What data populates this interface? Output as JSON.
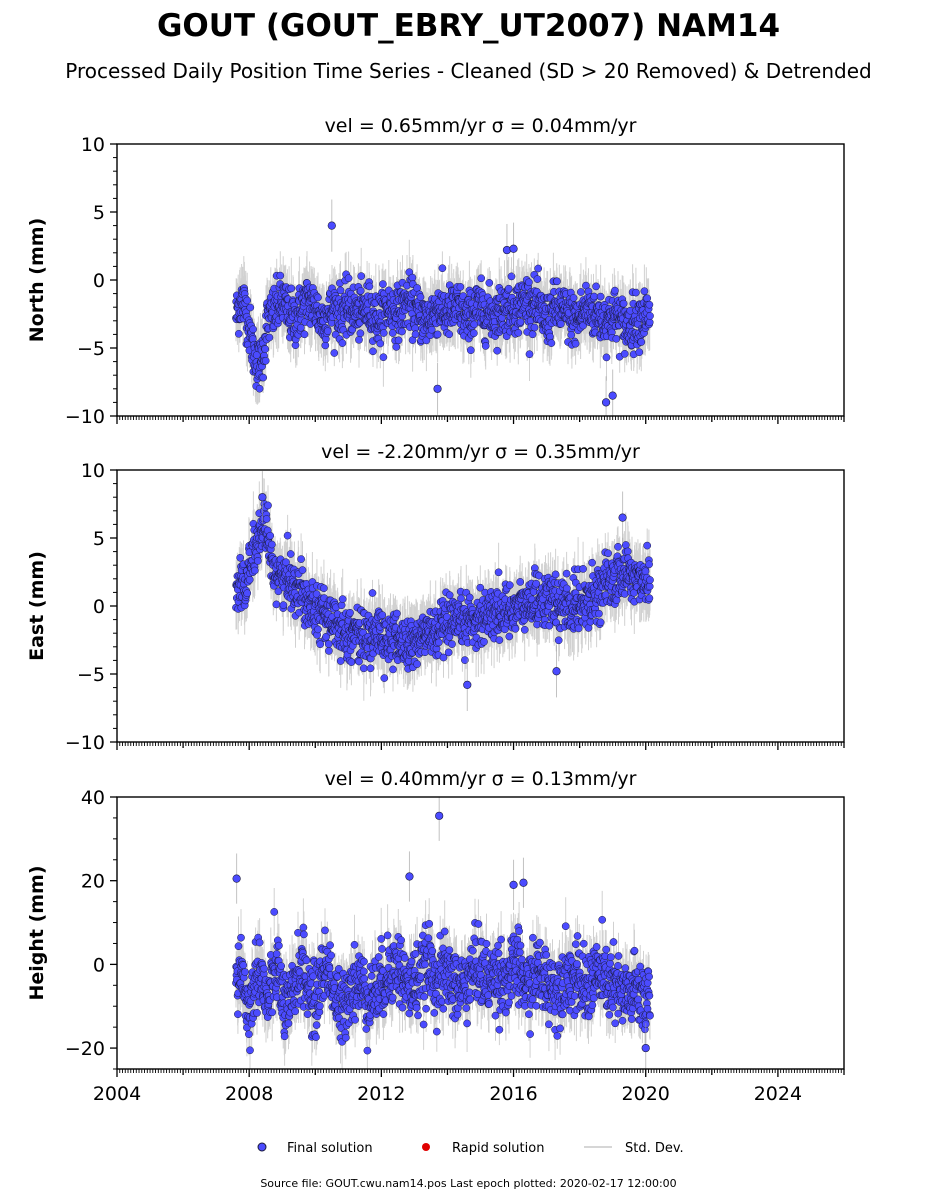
{
  "figure": {
    "title": "GOUT (GOUT_EBRY_UT2007) NAM14",
    "subtitle": "Processed Daily Position Time Series - Cleaned (SD > 20 Removed) & Detrended",
    "source_note": "Source file: GOUT.cwu.nam14.pos  Last epoch plotted: 2020-02-17 12:00:00"
  },
  "legend": {
    "items": [
      {
        "label": "Final solution",
        "color": "#4b4bff"
      },
      {
        "label": "Rapid solution",
        "color": "#e00000"
      },
      {
        "label": "Std. Dev.",
        "color": "#c8c8c8"
      }
    ]
  },
  "colors": {
    "final": "#4b4bff",
    "rapid": "#e00000",
    "stddev": "#9a9a9a",
    "marker_edge": "#1a1a3a"
  },
  "chart_data": [
    {
      "type": "scatter",
      "component": "North",
      "title": "vel = 0.65mm/yr   σ = 0.04mm/yr",
      "ylabel": "North (mm)",
      "xlim": [
        2004,
        2026
      ],
      "ylim": [
        -10,
        10
      ],
      "yticks": [
        -10,
        -5,
        0,
        5,
        10
      ],
      "ytick_labels": [
        "−10",
        "−5",
        "0",
        "5",
        "10"
      ],
      "xticks": [
        2004,
        2008,
        2012,
        2016,
        2020,
        2024
      ],
      "xtick_labels": [],
      "data_range": [
        2007.6,
        2020.13
      ],
      "series": [
        {
          "name": "Final solution",
          "x": [
            2007.62,
            2007.75,
            2007.9,
            2008.0,
            2008.15,
            2008.3,
            2008.45,
            2008.55,
            2008.7,
            2008.85,
            2009.0,
            2009.2,
            2009.4,
            2009.6,
            2009.8,
            2010.0,
            2010.2,
            2010.4,
            2010.6,
            2010.8,
            2011.0,
            2011.3,
            2011.6,
            2011.9,
            2012.2,
            2012.5,
            2012.8,
            2013.1,
            2013.4,
            2013.7,
            2014.0,
            2014.3,
            2014.6,
            2014.9,
            2015.2,
            2015.5,
            2015.8,
            2016.1,
            2016.4,
            2016.7,
            2017.0,
            2017.3,
            2017.6,
            2017.9,
            2018.2,
            2018.5,
            2018.8,
            2019.1,
            2019.4,
            2019.7,
            2020.0,
            2020.1
          ],
          "y": [
            -2.5,
            -1.5,
            -2.0,
            -3.5,
            -5.5,
            -6.5,
            -5.0,
            -3.0,
            -2.5,
            -2.0,
            -1.5,
            -2.5,
            -3.0,
            -2.0,
            -1.5,
            -2.0,
            -3.0,
            -2.5,
            -2.0,
            -2.5,
            -2.0,
            -2.5,
            -2.0,
            -3.0,
            -2.0,
            -2.5,
            -1.5,
            -2.5,
            -3.0,
            -2.0,
            -2.5,
            -2.0,
            -3.0,
            -2.0,
            -2.5,
            -2.5,
            -2.0,
            -2.0,
            -1.5,
            -2.0,
            -3.0,
            -2.0,
            -2.5,
            -3.0,
            -2.0,
            -2.5,
            -3.0,
            -2.5,
            -3.5,
            -3.0,
            -2.5,
            -3.0
          ],
          "outliers_x": [
            2010.5,
            2013.7,
            2018.8,
            2019.0,
            2015.8,
            2016.0
          ],
          "outliers_y": [
            4.0,
            -8.0,
            -9.0,
            -8.5,
            2.2,
            2.3
          ]
        }
      ]
    },
    {
      "type": "scatter",
      "component": "East",
      "title": "vel = -2.20mm/yr   σ = 0.35mm/yr",
      "ylabel": "East (mm)",
      "xlim": [
        2004,
        2026
      ],
      "ylim": [
        -10,
        10
      ],
      "yticks": [
        -10,
        -5,
        0,
        5,
        10
      ],
      "ytick_labels": [
        "−10",
        "−5",
        "0",
        "5",
        "10"
      ],
      "xticks": [
        2004,
        2008,
        2012,
        2016,
        2020,
        2024
      ],
      "xtick_labels": [],
      "data_range": [
        2007.6,
        2020.13
      ],
      "series": [
        {
          "name": "Final solution",
          "x": [
            2007.62,
            2007.75,
            2007.9,
            2008.0,
            2008.15,
            2008.3,
            2008.45,
            2008.55,
            2008.7,
            2008.85,
            2009.0,
            2009.2,
            2009.4,
            2009.6,
            2009.8,
            2010.0,
            2010.2,
            2010.4,
            2010.6,
            2010.8,
            2011.0,
            2011.3,
            2011.6,
            2011.9,
            2012.2,
            2012.5,
            2012.8,
            2013.1,
            2013.4,
            2013.7,
            2014.0,
            2014.3,
            2014.6,
            2014.9,
            2015.2,
            2015.5,
            2015.8,
            2016.1,
            2016.4,
            2016.7,
            2017.0,
            2017.3,
            2017.6,
            2017.9,
            2018.2,
            2018.5,
            2018.8,
            2019.1,
            2019.4,
            2019.7,
            2020.0,
            2020.1
          ],
          "y": [
            1.5,
            2.0,
            1.0,
            3.0,
            4.0,
            5.0,
            6.0,
            4.5,
            3.0,
            2.5,
            2.0,
            2.0,
            1.5,
            1.0,
            0.5,
            0.0,
            -0.5,
            -1.0,
            -1.5,
            -1.5,
            -2.0,
            -2.0,
            -2.5,
            -2.0,
            -2.5,
            -2.5,
            -3.0,
            -2.5,
            -2.0,
            -2.0,
            -1.5,
            -1.5,
            -1.0,
            -1.0,
            -0.5,
            -0.5,
            -0.5,
            0.0,
            0.0,
            0.5,
            0.5,
            0.0,
            0.0,
            0.0,
            0.5,
            1.0,
            1.5,
            2.0,
            2.5,
            2.0,
            2.0,
            2.0
          ],
          "outliers_x": [
            2008.4,
            2017.3,
            2014.6,
            2019.3
          ],
          "outliers_y": [
            8.0,
            -4.8,
            -5.8,
            6.5
          ]
        }
      ]
    },
    {
      "type": "scatter",
      "component": "Height",
      "title": "vel = 0.40mm/yr   σ = 0.13mm/yr",
      "ylabel": "Height (mm)",
      "xlim": [
        2004,
        2026
      ],
      "ylim": [
        -25,
        40
      ],
      "yticks": [
        -20,
        0,
        20,
        40
      ],
      "ytick_labels": [
        "−20",
        "0",
        "20",
        "40"
      ],
      "xticks": [
        2004,
        2008,
        2012,
        2016,
        2020,
        2024
      ],
      "xtick_labels": [
        "2004",
        "2008",
        "2012",
        "2016",
        "2020",
        "2024"
      ],
      "xlabel": "",
      "data_range": [
        2007.6,
        2020.13
      ],
      "series": [
        {
          "name": "Final solution",
          "x": [
            2007.62,
            2007.75,
            2007.9,
            2008.0,
            2008.15,
            2008.3,
            2008.45,
            2008.55,
            2008.7,
            2008.85,
            2009.0,
            2009.2,
            2009.4,
            2009.6,
            2009.8,
            2010.0,
            2010.2,
            2010.4,
            2010.6,
            2010.8,
            2011.0,
            2011.3,
            2011.6,
            2011.9,
            2012.2,
            2012.5,
            2012.8,
            2013.1,
            2013.4,
            2013.7,
            2014.0,
            2014.3,
            2014.6,
            2014.9,
            2015.2,
            2015.5,
            2015.8,
            2016.1,
            2016.4,
            2016.7,
            2017.0,
            2017.3,
            2017.6,
            2017.9,
            2018.2,
            2018.5,
            2018.8,
            2019.1,
            2019.4,
            2019.7,
            2020.0,
            2020.1
          ],
          "y": [
            -5.0,
            0.0,
            -8.0,
            -12.0,
            -5.0,
            0.0,
            -6.0,
            -10.0,
            -4.0,
            0.0,
            -8.0,
            -12.0,
            -4.0,
            0.0,
            -6.0,
            -10.0,
            -2.0,
            0.0,
            -8.0,
            -12.0,
            -6.0,
            -4.0,
            -8.0,
            -6.0,
            -2.0,
            0.0,
            -6.0,
            -4.0,
            0.0,
            -4.0,
            -2.0,
            -6.0,
            -4.0,
            0.0,
            -4.0,
            -2.0,
            -4.0,
            0.0,
            -6.0,
            -2.0,
            -4.0,
            -6.0,
            -2.0,
            -4.0,
            -6.0,
            -2.0,
            -4.0,
            -6.0,
            -8.0,
            -6.0,
            -8.0,
            -6.0
          ],
          "outliers_x": [
            2007.62,
            2013.75,
            2012.85,
            2016.0,
            2016.3,
            2020.0
          ],
          "outliers_y": [
            20.5,
            35.5,
            21.0,
            19.0,
            19.5,
            -20.0
          ]
        }
      ]
    }
  ]
}
